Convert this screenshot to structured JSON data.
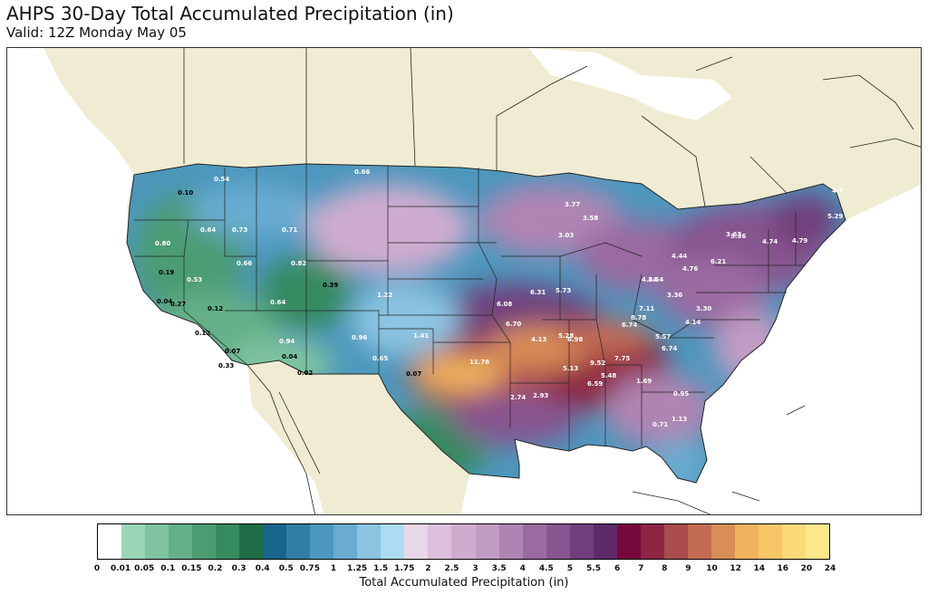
{
  "header": {
    "title": "AHPS 30-Day Total Accumulated Precipitation (in)",
    "subtitle": "Valid: 12Z Monday May 05"
  },
  "legend": {
    "label": "Total Accumulated Precipitation (in)",
    "ticks": [
      "0",
      "0.01",
      "0.05",
      "0.1",
      "0.15",
      "0.2",
      "0.3",
      "0.4",
      "0.5",
      "0.75",
      "1",
      "1.25",
      "1.5",
      "1.75",
      "2",
      "2.5",
      "3",
      "3.5",
      "4",
      "4.5",
      "5",
      "5.5",
      "6",
      "7",
      "8",
      "9",
      "10",
      "12",
      "14",
      "16",
      "20",
      "24"
    ],
    "colors": [
      "#ffffff",
      "#9ad5b8",
      "#7fc3a0",
      "#65b088",
      "#4c9c72",
      "#358a5e",
      "#1e6d46",
      "#17648c",
      "#2f7fa5",
      "#4c97bd",
      "#69accf",
      "#8cc4e2",
      "#acdcf2",
      "#e9d7ea",
      "#dbbfdc",
      "#cfaccf",
      "#c29bc3",
      "#b084b2",
      "#9a6ba0",
      "#87558f",
      "#713f7c",
      "#5e2b68",
      "#76083b",
      "#8e2543",
      "#aa4c4c",
      "#c26b52",
      "#d98d57",
      "#f1b25e",
      "#f6c667",
      "#fbd978",
      "#fce88a"
    ]
  },
  "map": {
    "values": [
      {
        "text": "0.10",
        "tone": "dark"
      },
      {
        "text": "0.54",
        "tone": "light"
      },
      {
        "text": "0.66",
        "tone": "light"
      },
      {
        "text": "0.64",
        "tone": "light"
      },
      {
        "text": "0.73",
        "tone": "light"
      },
      {
        "text": "0.71",
        "tone": "light"
      },
      {
        "text": "0.80",
        "tone": "light"
      },
      {
        "text": "0.19",
        "tone": "dark"
      },
      {
        "text": "0.53",
        "tone": "light"
      },
      {
        "text": "0.66",
        "tone": "light"
      },
      {
        "text": "0.82",
        "tone": "light"
      },
      {
        "text": "0.39",
        "tone": "dark"
      },
      {
        "text": "0.27",
        "tone": "dark"
      },
      {
        "text": "0.04",
        "tone": "dark"
      },
      {
        "text": "0.12",
        "tone": "dark"
      },
      {
        "text": "0.64",
        "tone": "light"
      },
      {
        "text": "1.22",
        "tone": "light"
      },
      {
        "text": "0.12",
        "tone": "dark"
      },
      {
        "text": "0.07",
        "tone": "dark"
      },
      {
        "text": "0.04",
        "tone": "dark"
      },
      {
        "text": "0.02",
        "tone": "dark"
      },
      {
        "text": "0.33",
        "tone": "dark"
      },
      {
        "text": "0.94",
        "tone": "light"
      },
      {
        "text": "0.96",
        "tone": "light"
      },
      {
        "text": "0.65",
        "tone": "light"
      },
      {
        "text": "0.07",
        "tone": "dark"
      },
      {
        "text": "1.41",
        "tone": "light"
      },
      {
        "text": "11.76",
        "tone": "light"
      },
      {
        "text": "6.08",
        "tone": "light"
      },
      {
        "text": "6.31",
        "tone": "light"
      },
      {
        "text": "5.73",
        "tone": "light"
      },
      {
        "text": "6.70",
        "tone": "light"
      },
      {
        "text": "4.13",
        "tone": "light"
      },
      {
        "text": "5.28",
        "tone": "light"
      },
      {
        "text": "6.98",
        "tone": "light"
      },
      {
        "text": "9.52",
        "tone": "light"
      },
      {
        "text": "6.74",
        "tone": "light"
      },
      {
        "text": "8.78",
        "tone": "light"
      },
      {
        "text": "7.11",
        "tone": "light"
      },
      {
        "text": "7.75",
        "tone": "light"
      },
      {
        "text": "5.48",
        "tone": "light"
      },
      {
        "text": "5.13",
        "tone": "light"
      },
      {
        "text": "6.59",
        "tone": "light"
      },
      {
        "text": "2.93",
        "tone": "light"
      },
      {
        "text": "2.74",
        "tone": "light"
      },
      {
        "text": "5.57",
        "tone": "light"
      },
      {
        "text": "6.74",
        "tone": "light"
      },
      {
        "text": "4.14",
        "tone": "light"
      },
      {
        "text": "3.30",
        "tone": "light"
      },
      {
        "text": "3.36",
        "tone": "light"
      },
      {
        "text": "4.44",
        "tone": "light"
      },
      {
        "text": "3.54",
        "tone": "light"
      },
      {
        "text": "4.76",
        "tone": "light"
      },
      {
        "text": "6.21",
        "tone": "light"
      },
      {
        "text": "4.44",
        "tone": "light"
      },
      {
        "text": "3.36",
        "tone": "light"
      },
      {
        "text": "4.74",
        "tone": "light"
      },
      {
        "text": "4.79",
        "tone": "light"
      },
      {
        "text": "5.29",
        "tone": "light"
      },
      {
        "text": "4.7",
        "tone": "light"
      },
      {
        "text": "3.77",
        "tone": "light"
      },
      {
        "text": "3.58",
        "tone": "light"
      },
      {
        "text": "3.03",
        "tone": "light"
      },
      {
        "text": "3.63",
        "tone": "light"
      },
      {
        "text": "0.95",
        "tone": "light"
      },
      {
        "text": "1.13",
        "tone": "light"
      },
      {
        "text": "0.71",
        "tone": "light"
      },
      {
        "text": "1.69",
        "tone": "light"
      }
    ]
  }
}
